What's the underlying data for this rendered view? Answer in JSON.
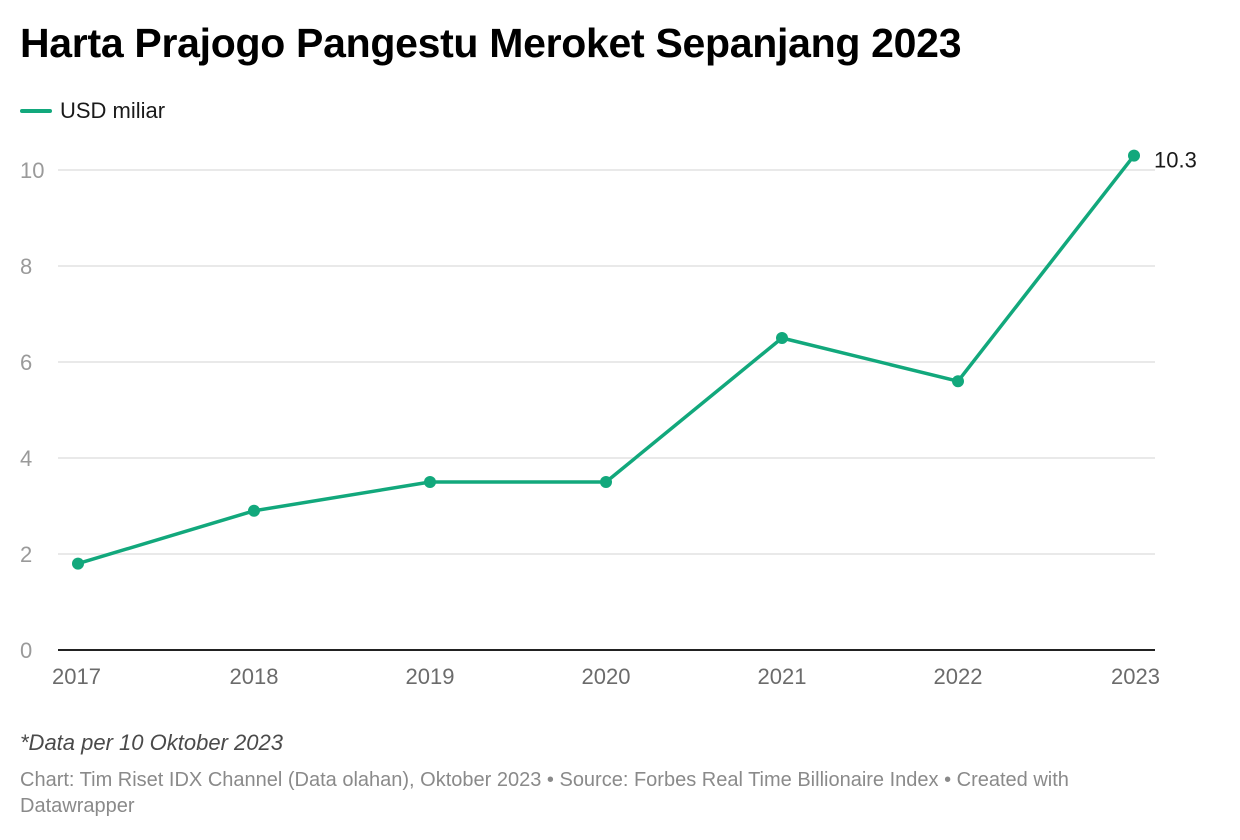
{
  "title": "Harta Prajogo Pangestu Meroket Sepanjang 2023",
  "note": "*Data per 10 Oktober 2023",
  "footer": "Chart: Tim Riset IDX Channel (Data olahan), Oktober 2023 • Source: Forbes Real Time Billionaire Index • Created with Datawrapper",
  "colors": {
    "series": "#12a87c",
    "grid": "#e2e2e2",
    "axis": "#222222"
  },
  "chart_data": {
    "type": "line",
    "title": "Harta Prajogo Pangestu Meroket Sepanjang 2023",
    "x": [
      "2017",
      "2018",
      "2019",
      "2020",
      "2021",
      "2022",
      "2023"
    ],
    "series": [
      {
        "name": "USD miliar",
        "values": [
          1.8,
          2.9,
          3.5,
          3.5,
          6.5,
          5.6,
          10.3
        ]
      }
    ],
    "ylim": [
      0,
      10
    ],
    "yticks": [
      0,
      2,
      4,
      6,
      8,
      10
    ],
    "grid": true,
    "legend": "top-left",
    "labeled_points": [
      {
        "x": "2023",
        "label": "10.3"
      }
    ],
    "xlabel": "",
    "ylabel": ""
  }
}
